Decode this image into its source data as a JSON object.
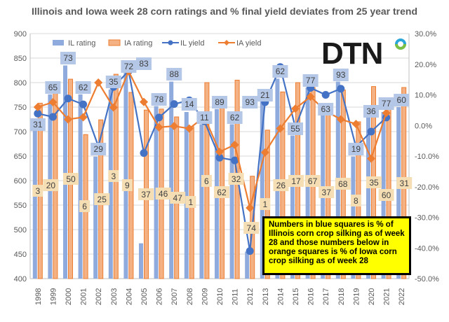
{
  "chart_data": {
    "type": "bar+line",
    "title": "Illinois and Iowa week 28 corn ratings and % final yield deviates from 25 year trend",
    "categories": [
      "1998",
      "1999",
      "2000",
      "2001",
      "2002",
      "2003",
      "2004",
      "2005",
      "2006",
      "2007",
      "2008",
      "2009",
      "2010",
      "2011",
      "2012",
      "2013",
      "2014",
      "2015",
      "2016",
      "2017",
      "2018",
      "2019",
      "2020",
      "2021",
      "2022"
    ],
    "left_axis": {
      "range": [
        400,
        900
      ],
      "ticks": [
        "400",
        "450",
        "500",
        "550",
        "600",
        "650",
        "700",
        "750",
        "800",
        "850",
        "900"
      ]
    },
    "right_axis": {
      "range": [
        -50,
        30
      ],
      "ticks": [
        "-50.0%",
        "-40.0%",
        "-30.0%",
        "-20.0%",
        "-10.0%",
        "0.0%",
        "10.0%",
        "20.0%",
        "30.0%"
      ]
    },
    "grid": true,
    "legend_position": "top-left",
    "series": [
      {
        "name": "IL rating",
        "type": "bar",
        "axis": "left",
        "color": "#8faadc",
        "values": [
          702,
          776,
          835,
          776,
          649,
          786,
          825,
          472,
          752,
          802,
          740,
          715,
          746,
          715,
          455,
          764,
          808,
          692,
          790,
          733,
          802,
          649,
          729,
          740,
          750
        ]
      },
      {
        "name": "IA rating",
        "type": "bar",
        "axis": "left",
        "color": "#f4b183",
        "values": [
          758,
          783,
          807,
          694,
          724,
          817,
          780,
          744,
          746,
          730,
          710,
          800,
          751,
          805,
          609,
          703,
          781,
          800,
          790,
          738,
          785,
          720,
          792,
          745,
          790
        ]
      },
      {
        "name": "IL yield",
        "type": "line",
        "axis": "right",
        "color": "#4472c4",
        "values": [
          3.9,
          2.8,
          8.8,
          6.9,
          -6.8,
          12.6,
          17.8,
          -9.0,
          2.6,
          7.0,
          8.2,
          1.4,
          -10.5,
          -11.4,
          -41.0,
          7.6,
          19.1,
          -0.6,
          12.3,
          10.0,
          12.0,
          -7.0,
          -2.0,
          2.6,
          null
        ]
      },
      {
        "name": "IA yield",
        "type": "line",
        "axis": "right",
        "color": "#ed7d31",
        "values": [
          6.0,
          7.6,
          2.0,
          2.7,
          14.0,
          5.9,
          17.7,
          7.7,
          -0.6,
          -0.2,
          -1.0,
          2.8,
          -8.6,
          -6.3,
          -26.9,
          -8.8,
          -1.0,
          5.5,
          9.4,
          4.7,
          2.0,
          0.5,
          -10.8,
          4.1,
          null
        ]
      }
    ],
    "il_silking_labels": [
      "31",
      "65",
      "73",
      "62",
      "29",
      "35",
      "72",
      "83",
      "78",
      "88",
      "14",
      "11",
      "89",
      "62",
      "93",
      "21",
      "62",
      "55",
      "77",
      "63",
      "93",
      "19",
      "36",
      "77",
      "60"
    ],
    "ia_silking_labels": [
      "3",
      "20",
      "50",
      "6",
      "25",
      "3",
      "9",
      "37",
      "46",
      "47",
      "1",
      "6",
      "62",
      "32",
      "74",
      "1",
      "26",
      "17",
      "67",
      "37",
      "68",
      "8",
      "35",
      "60",
      "31"
    ],
    "annotation": "Numbers in blue squares is % of Illinois corn crop silking as of week 28 and those numbers below in orange squares  is % of Iowa corn crop silking as of week 28"
  },
  "logo": "DTN"
}
